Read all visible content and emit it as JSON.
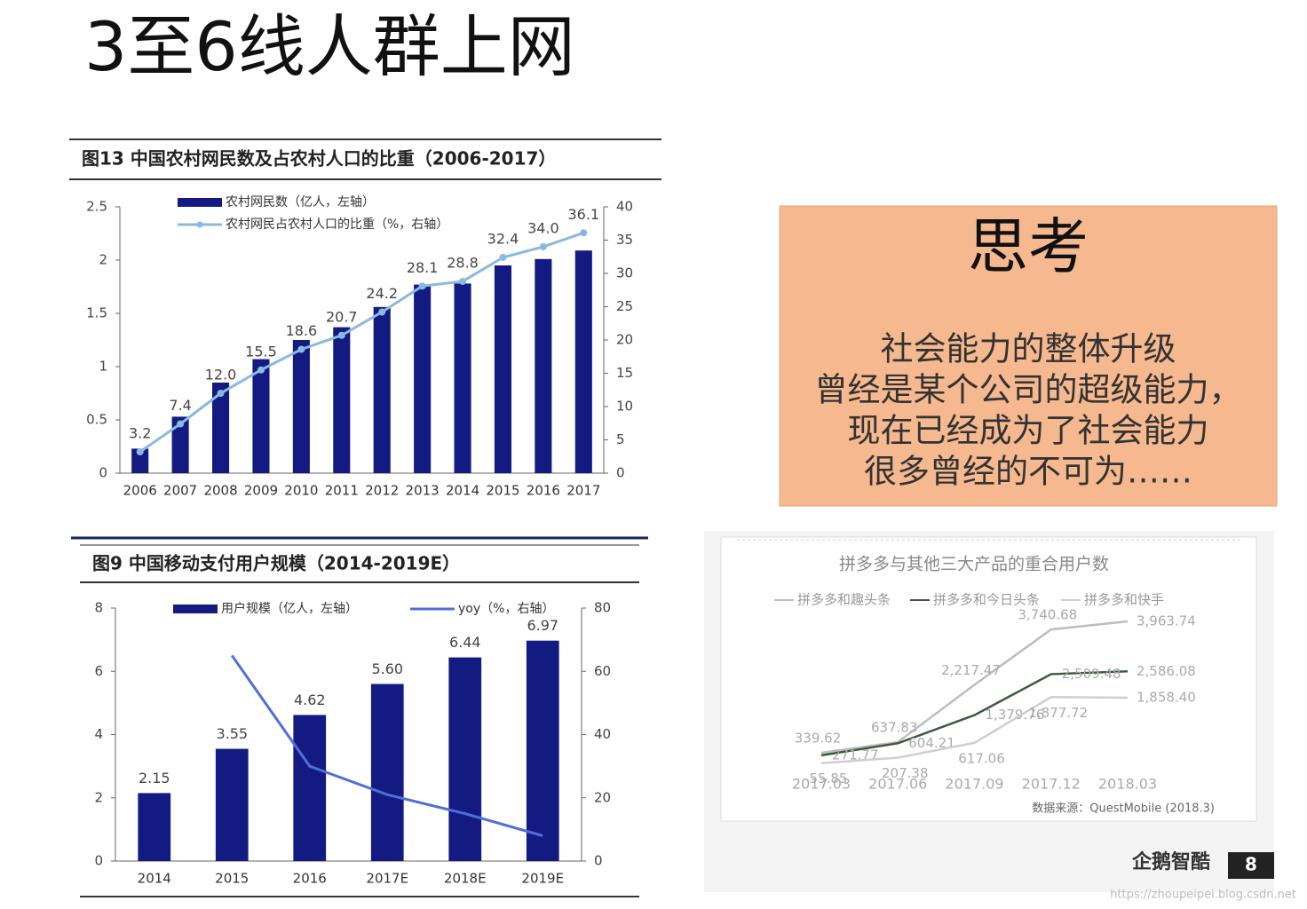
{
  "slide": {
    "title": "3至6线人群上网",
    "page_number": "8",
    "logo": "企鹅智酷",
    "watermark": "https://zhoupeipei.blog.csdn.net"
  },
  "thinking": {
    "title": "思考",
    "lines": [
      "社会能力的整体升级",
      "曾经是某个公司的超级能力，",
      "现在已经成为了社会能力",
      "很多曾经的不可为……"
    ]
  },
  "chart_data": [
    {
      "type": "combo",
      "title": "图13 中国农村网民数及占农村人口的比重（2006-2017）",
      "categories": [
        "2006",
        "2007",
        "2008",
        "2009",
        "2010",
        "2011",
        "2012",
        "2013",
        "2014",
        "2015",
        "2016",
        "2017"
      ],
      "series": [
        {
          "name": "农村网民数（亿人，左轴）",
          "type": "bar",
          "color": "#131a82",
          "values": [
            0.23,
            0.53,
            0.85,
            1.07,
            1.25,
            1.37,
            1.56,
            1.77,
            1.78,
            1.95,
            2.01,
            2.09
          ]
        },
        {
          "name": "农村网民占农村人口的比重（%，右轴）",
          "type": "line",
          "axis": "y2",
          "color": "#8ab9df",
          "markers": true,
          "values": [
            3.2,
            7.4,
            12.0,
            15.5,
            18.6,
            20.7,
            24.2,
            28.1,
            28.8,
            32.4,
            34.0,
            36.1
          ],
          "value_labels": [
            "3.2",
            "7.4",
            "12.0",
            "15.5",
            "18.6",
            "20.7",
            "24.2",
            "28.1",
            "28.8",
            "32.4",
            "34.0",
            "36.1"
          ]
        }
      ],
      "ylim": [
        0,
        2.5
      ],
      "yticks": [
        0,
        0.5,
        1,
        1.5,
        2,
        2.5
      ],
      "y2lim": [
        0,
        40
      ],
      "y2ticks": [
        0,
        5,
        10,
        15,
        20,
        25,
        30,
        35,
        40
      ]
    },
    {
      "type": "combo",
      "title": "图9  中国移动支付用户规模（2014-2019E）",
      "categories": [
        "2014",
        "2015",
        "2016",
        "2017E",
        "2018E",
        "2019E"
      ],
      "series": [
        {
          "name": "用户规模（亿人，左轴）",
          "type": "bar",
          "color": "#131a82",
          "values": [
            2.15,
            3.55,
            4.62,
            5.6,
            6.44,
            6.97
          ],
          "value_labels": [
            "2.15",
            "3.55",
            "4.62",
            "5.60",
            "6.44",
            "6.97"
          ]
        },
        {
          "name": "yoy（%，右轴）",
          "type": "line",
          "axis": "y2",
          "color": "#4f6fd8",
          "markers": false,
          "values": [
            null,
            65,
            30,
            21,
            15,
            8
          ]
        }
      ],
      "ylim": [
        0,
        8
      ],
      "yticks": [
        0,
        2,
        4,
        6,
        8
      ],
      "y2lim": [
        0,
        80
      ],
      "y2ticks": [
        0,
        20,
        40,
        60,
        80
      ]
    },
    {
      "type": "line",
      "title": "拼多多与其他三大产品的重合用户数",
      "source": "数据来源：QuestMobile (2018.3)",
      "categories": [
        "2017.03",
        "2017.06",
        "2017.09",
        "2017.12",
        "2018.03"
      ],
      "series": [
        {
          "name": "拼多多和趣头条",
          "color": "#bdbdbd",
          "values": [
            339.62,
            637.83,
            2217.47,
            3740.68,
            3963.74
          ],
          "value_labels": [
            "339.62",
            "637.83",
            "2,217.47",
            "3,740.68",
            "3,963.74"
          ]
        },
        {
          "name": "拼多多和今日头条",
          "color": "#3e5a3e",
          "values": [
            271.77,
            604.21,
            1379.76,
            2509.48,
            2586.08
          ],
          "value_labels": [
            "271.77",
            "604.21",
            "1,379.76",
            "2,509.48",
            "2,586.08"
          ]
        },
        {
          "name": "拼多多和快手",
          "color": "#cfcfcf",
          "values": [
            55.85,
            207.38,
            617.06,
            1877.72,
            1858.4
          ],
          "value_labels": [
            "55.85",
            "207.38",
            "617.06",
            "1,877.72",
            "1,858.40"
          ]
        }
      ]
    }
  ]
}
